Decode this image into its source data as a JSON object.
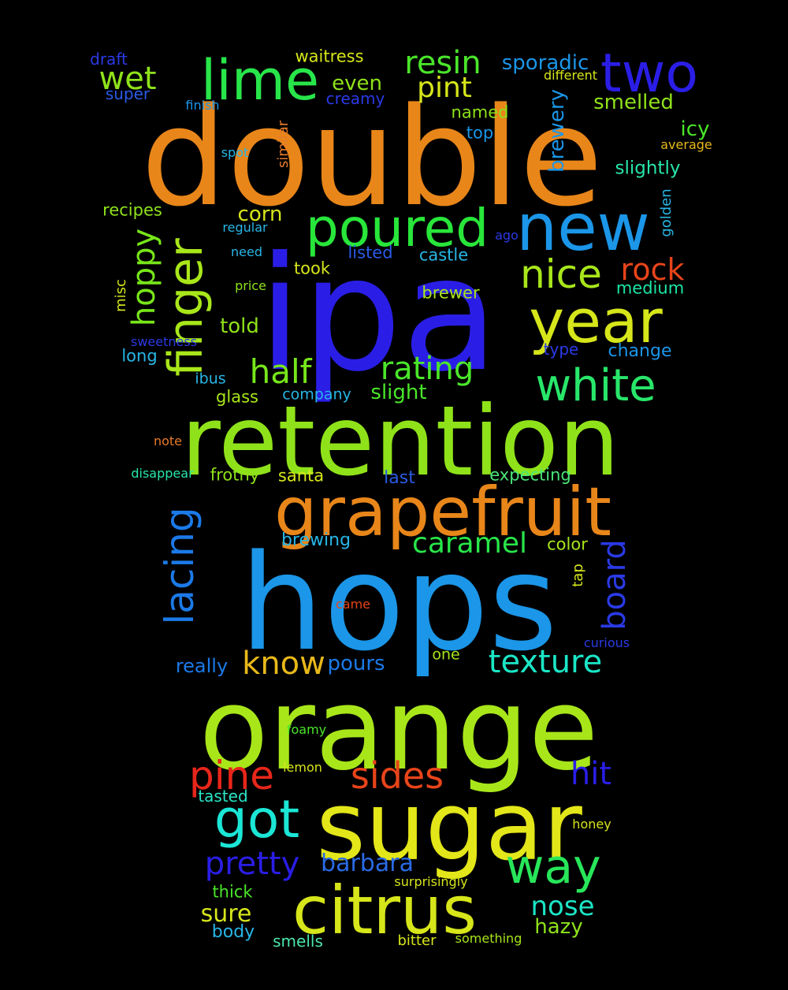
{
  "words": [
    {
      "text": "double",
      "color": "#e8861a"
    },
    {
      "text": "ipa",
      "color": "#2a1ee6"
    },
    {
      "text": "hops",
      "color": "#1b96e8"
    },
    {
      "text": "retention",
      "color": "#8fe21a"
    },
    {
      "text": "orange",
      "color": "#a8e61a"
    },
    {
      "text": "sugar",
      "color": "#e3e619"
    },
    {
      "text": "grapefruit",
      "color": "#e8861a"
    },
    {
      "text": "citrus",
      "color": "#d6e61a"
    },
    {
      "text": "lime",
      "color": "#28e64a"
    },
    {
      "text": "two",
      "color": "#2a1ee6"
    },
    {
      "text": "new",
      "color": "#1b96e8"
    },
    {
      "text": "poured",
      "color": "#28e63a"
    },
    {
      "text": "year",
      "color": "#d6e61a"
    },
    {
      "text": "finger",
      "color": "#a8e61a"
    },
    {
      "text": "white",
      "color": "#28e66a"
    },
    {
      "text": "way",
      "color": "#28e65a"
    },
    {
      "text": "got",
      "color": "#1be6d6"
    },
    {
      "text": "nice",
      "color": "#a8e61a"
    },
    {
      "text": "lacing",
      "color": "#1b7ae8"
    },
    {
      "text": "rock",
      "color": "#e8441a"
    },
    {
      "text": "pine",
      "color": "#e8261a"
    },
    {
      "text": "sides",
      "color": "#e8441a"
    },
    {
      "text": "half",
      "color": "#78e61a"
    },
    {
      "text": "rating",
      "color": "#4ae62a"
    },
    {
      "text": "resin",
      "color": "#4ae62a"
    },
    {
      "text": "wet",
      "color": "#8fe21a"
    },
    {
      "text": "hoppy",
      "color": "#78e61a"
    },
    {
      "text": "know",
      "color": "#e8b81a"
    },
    {
      "text": "texture",
      "color": "#1be6c6"
    },
    {
      "text": "caramel",
      "color": "#28e64a"
    },
    {
      "text": "board",
      "color": "#2a3ae6"
    },
    {
      "text": "pretty",
      "color": "#2a1ee6"
    },
    {
      "text": "hit",
      "color": "#2a1ee6"
    },
    {
      "text": "pint",
      "color": "#d6e61a"
    },
    {
      "text": "nose",
      "color": "#1be6c6"
    },
    {
      "text": "barbara",
      "color": "#2a6ae6"
    },
    {
      "text": "sporadic",
      "color": "#1b96e8"
    },
    {
      "text": "sure",
      "color": "#d6e61a"
    },
    {
      "text": "smelled",
      "color": "#8fe21a"
    },
    {
      "text": "even",
      "color": "#8fe21a"
    },
    {
      "text": "corn",
      "color": "#d6e61a"
    },
    {
      "text": "told",
      "color": "#8fe21a"
    },
    {
      "text": "slight",
      "color": "#4ae62a"
    },
    {
      "text": "icy",
      "color": "#4ae62a"
    },
    {
      "text": "brewery",
      "color": "#1b96e8"
    },
    {
      "text": "hazy",
      "color": "#8fe21a"
    },
    {
      "text": "slightly",
      "color": "#28e6aa"
    },
    {
      "text": "pours",
      "color": "#1b7ae8"
    },
    {
      "text": "really",
      "color": "#1b7ae8"
    },
    {
      "text": "waitress",
      "color": "#d6e61a"
    },
    {
      "text": "named",
      "color": "#8fe21a"
    },
    {
      "text": "creamy",
      "color": "#2a3ae6"
    },
    {
      "text": "top",
      "color": "#1b96e8"
    },
    {
      "text": "castle",
      "color": "#28b6e6"
    },
    {
      "text": "listed",
      "color": "#2a5ae6"
    },
    {
      "text": "took",
      "color": "#d6e61a"
    },
    {
      "text": "brewer",
      "color": "#a8e61a"
    },
    {
      "text": "medium",
      "color": "#1be6a6"
    },
    {
      "text": "change",
      "color": "#1b96e8"
    },
    {
      "text": "santa",
      "color": "#d6e61a"
    },
    {
      "text": "frothy",
      "color": "#8fe21a"
    },
    {
      "text": "expecting",
      "color": "#4ae67a"
    },
    {
      "text": "last",
      "color": "#2a5ae6"
    },
    {
      "text": "brewing",
      "color": "#28b6e6"
    },
    {
      "text": "color",
      "color": "#a8e61a"
    },
    {
      "text": "glass",
      "color": "#a8e61a"
    },
    {
      "text": "company",
      "color": "#28b6e6"
    },
    {
      "text": "ibus",
      "color": "#28b6e6"
    },
    {
      "text": "long",
      "color": "#28b6e6"
    },
    {
      "text": "type",
      "color": "#2a3ae6"
    },
    {
      "text": "recipes",
      "color": "#8fe21a"
    },
    {
      "text": "draft",
      "color": "#2a3ae6"
    },
    {
      "text": "super",
      "color": "#2a5ae6"
    },
    {
      "text": "misc",
      "color": "#d6e61a"
    },
    {
      "text": "golden",
      "color": "#28b6e6"
    },
    {
      "text": "one",
      "color": "#a8e61a"
    },
    {
      "text": "tap",
      "color": "#d6e61a"
    },
    {
      "text": "body",
      "color": "#28b6e6"
    },
    {
      "text": "smells",
      "color": "#4ae6aa"
    },
    {
      "text": "bitter",
      "color": "#d6e61a"
    },
    {
      "text": "thick",
      "color": "#4ae62a"
    },
    {
      "text": "tasted",
      "color": "#28e6c6"
    },
    {
      "text": "similar",
      "color": "#e87a2a"
    },
    {
      "text": "finish",
      "color": "#1b96e8"
    },
    {
      "text": "different",
      "color": "#d6e61a"
    },
    {
      "text": "average",
      "color": "#e8b81a"
    },
    {
      "text": "spot",
      "color": "#28b6e6"
    },
    {
      "text": "regular",
      "color": "#28b6e6"
    },
    {
      "text": "ago",
      "color": "#2a3ae6"
    },
    {
      "text": "need",
      "color": "#28b6e6"
    },
    {
      "text": "price",
      "color": "#8fe21a"
    },
    {
      "text": "sweetness",
      "color": "#2a3ae6"
    },
    {
      "text": "note",
      "color": "#e87a2a"
    },
    {
      "text": "disappear",
      "color": "#28e6aa"
    },
    {
      "text": "came",
      "color": "#e8441a"
    },
    {
      "text": "curious",
      "color": "#2a3ae6"
    },
    {
      "text": "foamy",
      "color": "#4ae62a"
    },
    {
      "text": "lemon",
      "color": "#d6e61a"
    },
    {
      "text": "honey",
      "color": "#d6e61a"
    },
    {
      "text": "surprisingly",
      "color": "#d6e61a"
    },
    {
      "text": "something",
      "color": "#a8e61a"
    }
  ]
}
